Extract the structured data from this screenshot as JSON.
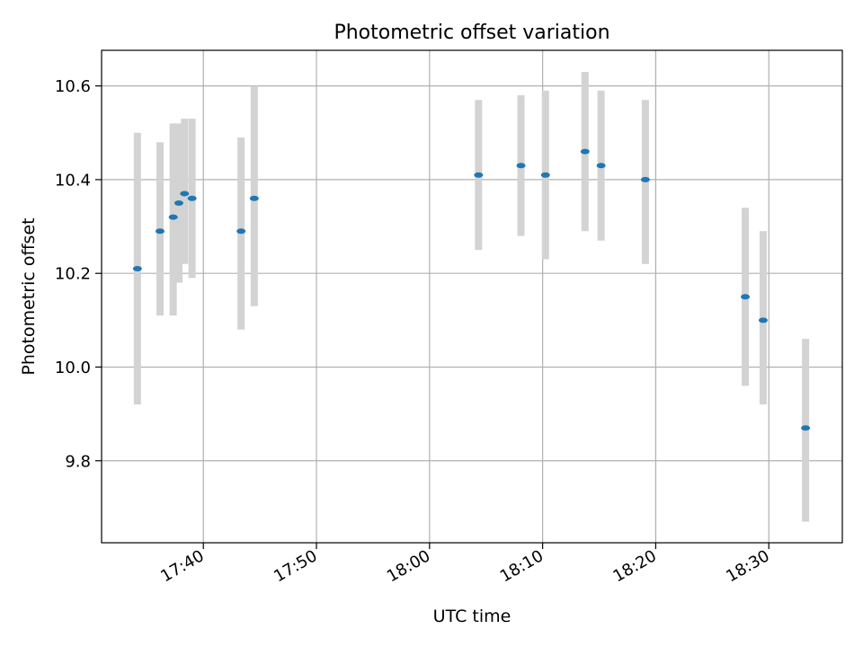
{
  "chart_data": {
    "type": "scatter",
    "title": "Photometric offset variation",
    "xlabel": "UTC time",
    "ylabel": "Photometric offset",
    "x_ticks": [
      "17:40",
      "17:50",
      "18:00",
      "18:10",
      "18:20",
      "18:30"
    ],
    "y_ticks": [
      "9.8",
      "10.0",
      "10.2",
      "10.4",
      "10.6"
    ],
    "xlim": [
      "17:31:00",
      "18:36:30"
    ],
    "ylim": [
      9.625,
      10.676
    ],
    "grid": true,
    "series": [
      {
        "marker_color": "#1f77b4",
        "errorbar_color": "#d3d3d3",
        "points": [
          {
            "x": "17:34:10",
            "y": 10.21,
            "err_low": 9.92,
            "err_high": 10.5
          },
          {
            "x": "17:36:10",
            "y": 10.29,
            "err_low": 10.11,
            "err_high": 10.48
          },
          {
            "x": "17:37:20",
            "y": 10.32,
            "err_low": 10.11,
            "err_high": 10.52
          },
          {
            "x": "17:37:50",
            "y": 10.35,
            "err_low": 10.18,
            "err_high": 10.52
          },
          {
            "x": "17:38:20",
            "y": 10.37,
            "err_low": 10.22,
            "err_high": 10.53
          },
          {
            "x": "17:39:00",
            "y": 10.36,
            "err_low": 10.19,
            "err_high": 10.53
          },
          {
            "x": "17:43:20",
            "y": 10.29,
            "err_low": 10.08,
            "err_high": 10.49
          },
          {
            "x": "17:44:30",
            "y": 10.36,
            "err_low": 10.13,
            "err_high": 10.6
          },
          {
            "x": "18:04:20",
            "y": 10.41,
            "err_low": 10.25,
            "err_high": 10.57
          },
          {
            "x": "18:08:05",
            "y": 10.43,
            "err_low": 10.28,
            "err_high": 10.58
          },
          {
            "x": "18:10:15",
            "y": 10.41,
            "err_low": 10.23,
            "err_high": 10.59
          },
          {
            "x": "18:13:45",
            "y": 10.46,
            "err_low": 10.29,
            "err_high": 10.63
          },
          {
            "x": "18:15:10",
            "y": 10.43,
            "err_low": 10.27,
            "err_high": 10.59
          },
          {
            "x": "18:19:05",
            "y": 10.4,
            "err_low": 10.22,
            "err_high": 10.57
          },
          {
            "x": "18:27:55",
            "y": 10.15,
            "err_low": 9.96,
            "err_high": 10.34
          },
          {
            "x": "18:29:30",
            "y": 10.1,
            "err_low": 9.92,
            "err_high": 10.29
          },
          {
            "x": "18:33:15",
            "y": 9.87,
            "err_low": 9.67,
            "err_high": 10.06
          }
        ]
      }
    ]
  }
}
